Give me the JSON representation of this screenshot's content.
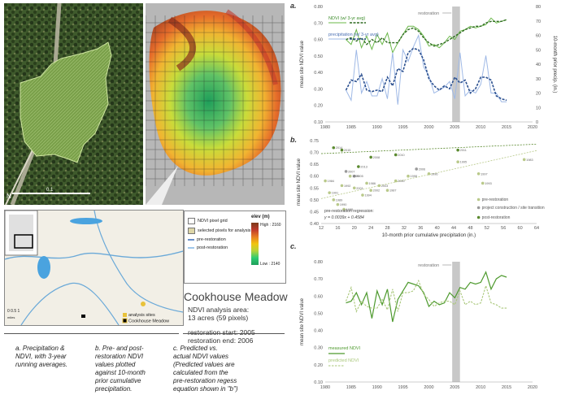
{
  "maps": {
    "aerial_scale_label": "0.1",
    "compass": "N",
    "inset_scale_label": "0 0.5 1",
    "inset_scale_unit": "miles"
  },
  "legend": {
    "items": [
      "NDVI pixel grid",
      "selected pixels for analysis",
      "pre-restoration",
      "post-restoration"
    ],
    "elev_title": "elev (m)",
    "elev_high": "High : 2160",
    "elev_low": "Low : 2140",
    "inset_items": [
      "analysis sites",
      "Cookhouse Meadow"
    ]
  },
  "site": {
    "title": "Cookhouse Meadow",
    "info_lines": [
      "NDVI analysis area:",
      "13 acres (59 pixels)",
      "",
      "restoration start: 2005",
      "restoration end: 2006"
    ]
  },
  "captions": [
    [
      "a. Precipitation &",
      "NDVI, with 3-year",
      "running averages."
    ],
    [
      "b. Pre- and post-",
      "restoration NDVI",
      "values plotted",
      "against 10-month",
      "prior cumulative",
      "precipitation."
    ],
    [
      "c. Predicted vs.",
      "actual NDVI values",
      "(Predicted values are",
      "calculated from the",
      "pre-restoration regess",
      "equation shown in \"b\")"
    ]
  ],
  "chart_data": [
    {
      "panel": "a.",
      "type": "line",
      "ylabel": "mean site NDVI value",
      "y2label": "10-month prior precip. (in.)",
      "x_ticks": [
        1980,
        1985,
        1990,
        1995,
        2000,
        2005,
        2010,
        2015,
        2020
      ],
      "y_ticks": [
        "0.10",
        "0.20",
        "0.30",
        "0.40",
        "0.50",
        "0.60",
        "0.70",
        "0.80"
      ],
      "y2_ticks": [
        "0",
        "10",
        "20",
        "30",
        "40",
        "50",
        "60",
        "70",
        "80"
      ],
      "xlim": [
        1980,
        2020
      ],
      "ylim": [
        0.1,
        0.8
      ],
      "y2lim": [
        0,
        80
      ],
      "legend": [
        "NDVI (w/ 3-yr avg)",
        "precipitation (w/ 3-yr avg)"
      ],
      "annotation": "restoration",
      "restoration_span": [
        2004.5,
        2006
      ],
      "x": [
        1984,
        1985,
        1986,
        1987,
        1988,
        1989,
        1990,
        1991,
        1992,
        1993,
        1994,
        1995,
        1996,
        1997,
        1998,
        1999,
        2000,
        2001,
        2002,
        2003,
        2004,
        2005,
        2006,
        2007,
        2008,
        2009,
        2010,
        2011,
        2012,
        2013,
        2014,
        2015
      ],
      "series": [
        {
          "name": "NDVI",
          "values": [
            0.6,
            0.57,
            0.66,
            0.55,
            0.62,
            0.54,
            0.63,
            0.57,
            0.64,
            0.52,
            0.58,
            0.63,
            0.68,
            0.68,
            0.66,
            0.62,
            0.56,
            0.57,
            0.55,
            0.58,
            0.62,
            0.6,
            0.65,
            0.66,
            0.68,
            0.67,
            0.68,
            0.69,
            0.73,
            0.7,
            0.71,
            0.72
          ]
        },
        {
          "name": "NDVI 3-yr avg",
          "values": [
            0.6,
            0.61,
            0.59,
            0.61,
            0.57,
            0.6,
            0.58,
            0.61,
            0.58,
            0.58,
            0.58,
            0.63,
            0.66,
            0.67,
            0.65,
            0.61,
            0.58,
            0.56,
            0.57,
            0.58,
            0.6,
            0.62,
            0.64,
            0.66,
            0.67,
            0.68,
            0.68,
            0.7,
            0.71,
            0.71,
            0.71,
            0.72
          ]
        },
        {
          "name": "precipitation",
          "values": [
            22,
            15,
            50,
            20,
            28,
            18,
            18,
            30,
            16,
            48,
            12,
            50,
            42,
            52,
            60,
            38,
            32,
            20,
            22,
            24,
            28,
            16,
            48,
            18,
            22,
            20,
            26,
            46,
            20,
            20,
            14,
            14
          ]
        },
        {
          "name": "precipitation 3-yr avg",
          "values": [
            22,
            29,
            28,
            33,
            22,
            21,
            22,
            21,
            31,
            25,
            37,
            35,
            48,
            51,
            50,
            43,
            30,
            25,
            22,
            25,
            23,
            31,
            27,
            29,
            20,
            23,
            31,
            31,
            29,
            18,
            16,
            15
          ]
        }
      ]
    },
    {
      "panel": "b.",
      "type": "scatter",
      "xlabel": "10-month prior cumulative precipitation (in.)",
      "ylabel": "mean site NDVI value",
      "x_ticks": [
        12,
        16,
        20,
        24,
        28,
        32,
        36,
        40,
        44,
        48,
        52,
        56,
        60,
        64
      ],
      "y_ticks": [
        "0.40",
        "0.45",
        "0.50",
        "0.55",
        "0.60",
        "0.65",
        "0.70",
        "0.75"
      ],
      "xlim": [
        12,
        64
      ],
      "ylim": [
        0.4,
        0.75
      ],
      "legend": [
        "pre-restoration",
        "project construction / site transition",
        "post-restoration"
      ],
      "regression_title": "pre-restoration regression:",
      "regression": "y = 0.0039x + 0.4584",
      "series": [
        {
          "name": "pre-restoration",
          "points": [
            [
              13,
              0.58
            ],
            [
              14,
              0.53
            ],
            [
              15,
              0.5
            ],
            [
              16,
              0.48
            ],
            [
              17,
              0.56
            ],
            [
              17.5,
              0.46
            ],
            [
              19,
              0.6
            ],
            [
              20,
              0.55
            ],
            [
              22,
              0.52
            ],
            [
              23,
              0.57
            ],
            [
              24,
              0.54
            ],
            [
              26,
              0.56
            ],
            [
              28,
              0.54
            ],
            [
              30,
              0.58
            ],
            [
              33,
              0.6
            ],
            [
              38,
              0.61
            ],
            [
              45,
              0.66
            ],
            [
              50,
              0.61
            ],
            [
              51,
              0.57
            ],
            [
              61,
              0.67
            ]
          ]
        },
        {
          "name": "project construction / site transition",
          "points": [
            [
              18,
              0.62
            ],
            [
              20,
              0.6
            ],
            [
              35,
              0.63
            ]
          ]
        },
        {
          "name": "post-restoration",
          "points": [
            [
              15,
              0.72
            ],
            [
              17,
              0.71
            ],
            [
              21,
              0.64
            ],
            [
              24,
              0.68
            ],
            [
              30,
              0.69
            ],
            [
              45,
              0.71
            ]
          ]
        }
      ],
      "labels": [
        {
          "text": "1984",
          "x": 13,
          "y": 0.58
        },
        {
          "text": "1991",
          "x": 14,
          "y": 0.53
        },
        {
          "text": "1989",
          "x": 15,
          "y": 0.5
        },
        {
          "text": "1990",
          "x": 16,
          "y": 0.48
        },
        {
          "text": "1992",
          "x": 17,
          "y": 0.56
        },
        {
          "text": "1988",
          "x": 17.5,
          "y": 0.46
        },
        {
          "text": "1999",
          "x": 19,
          "y": 0.6
        },
        {
          "text": "2001",
          "x": 20,
          "y": 0.55
        },
        {
          "text": "1994",
          "x": 22,
          "y": 0.52
        },
        {
          "text": "1986",
          "x": 23,
          "y": 0.57
        },
        {
          "text": "2002",
          "x": 24,
          "y": 0.54
        },
        {
          "text": "2003",
          "x": 26,
          "y": 0.56
        },
        {
          "text": "1987",
          "x": 28,
          "y": 0.54
        },
        {
          "text": "2000",
          "x": 30,
          "y": 0.58
        },
        {
          "text": "1998",
          "x": 33,
          "y": 0.6
        },
        {
          "text": "1996",
          "x": 38,
          "y": 0.61
        },
        {
          "text": "1995",
          "x": 45,
          "y": 0.66
        },
        {
          "text": "1997",
          "x": 50,
          "y": 0.61
        },
        {
          "text": "1993",
          "x": 51,
          "y": 0.57
        },
        {
          "text": "1983",
          "x": 61,
          "y": 0.67
        },
        {
          "text": "2007",
          "x": 18,
          "y": 0.62
        },
        {
          "text": "2005",
          "x": 20,
          "y": 0.6
        },
        {
          "text": "2006",
          "x": 35,
          "y": 0.63
        },
        {
          "text": "2014",
          "x": 15,
          "y": 0.72
        },
        {
          "text": "2015",
          "x": 17,
          "y": 0.71
        },
        {
          "text": "2013",
          "x": 21,
          "y": 0.64
        },
        {
          "text": "2008",
          "x": 24,
          "y": 0.68
        },
        {
          "text": "2010",
          "x": 30,
          "y": 0.69
        },
        {
          "text": "2011",
          "x": 45,
          "y": 0.71
        }
      ]
    },
    {
      "panel": "c.",
      "type": "line",
      "ylabel": "mean site NDVI value",
      "x_ticks": [
        1980,
        1985,
        1990,
        1995,
        2000,
        2005,
        2010,
        2015,
        2020
      ],
      "y_ticks": [
        "0.10",
        "0.20",
        "0.30",
        "0.40",
        "0.50",
        "0.60",
        "0.70",
        "0.80"
      ],
      "xlim": [
        1980,
        2020
      ],
      "ylim": [
        0.1,
        0.8
      ],
      "legend": [
        "measured NDVI",
        "predicted NDVI"
      ],
      "annotation": "restoration",
      "restoration_span": [
        2004.5,
        2006
      ],
      "x": [
        1984,
        1985,
        1986,
        1987,
        1988,
        1989,
        1990,
        1991,
        1992,
        1993,
        1994,
        1995,
        1996,
        1997,
        1998,
        1999,
        2000,
        2001,
        2002,
        2003,
        2004,
        2005,
        2006,
        2007,
        2008,
        2009,
        2010,
        2011,
        2012,
        2013,
        2014,
        2015
      ],
      "series": [
        {
          "name": "measured NDVI",
          "values": [
            0.56,
            0.57,
            0.62,
            0.55,
            0.62,
            0.47,
            0.63,
            0.55,
            0.64,
            0.45,
            0.58,
            0.63,
            0.68,
            0.67,
            0.66,
            0.62,
            0.54,
            0.57,
            0.55,
            0.56,
            0.62,
            0.59,
            0.65,
            0.64,
            0.68,
            0.67,
            0.68,
            0.74,
            0.64,
            0.7,
            0.72,
            0.71
          ]
        },
        {
          "name": "predicted NDVI",
          "values": [
            0.57,
            0.65,
            0.51,
            0.57,
            0.54,
            0.53,
            0.53,
            0.58,
            0.52,
            0.64,
            0.51,
            0.62,
            0.62,
            0.63,
            0.69,
            0.61,
            0.58,
            0.54,
            0.56,
            0.57,
            0.57,
            0.55,
            0.63,
            0.55,
            0.57,
            0.55,
            0.56,
            0.66,
            0.56,
            0.55,
            0.53,
            0.53
          ]
        }
      ]
    }
  ]
}
